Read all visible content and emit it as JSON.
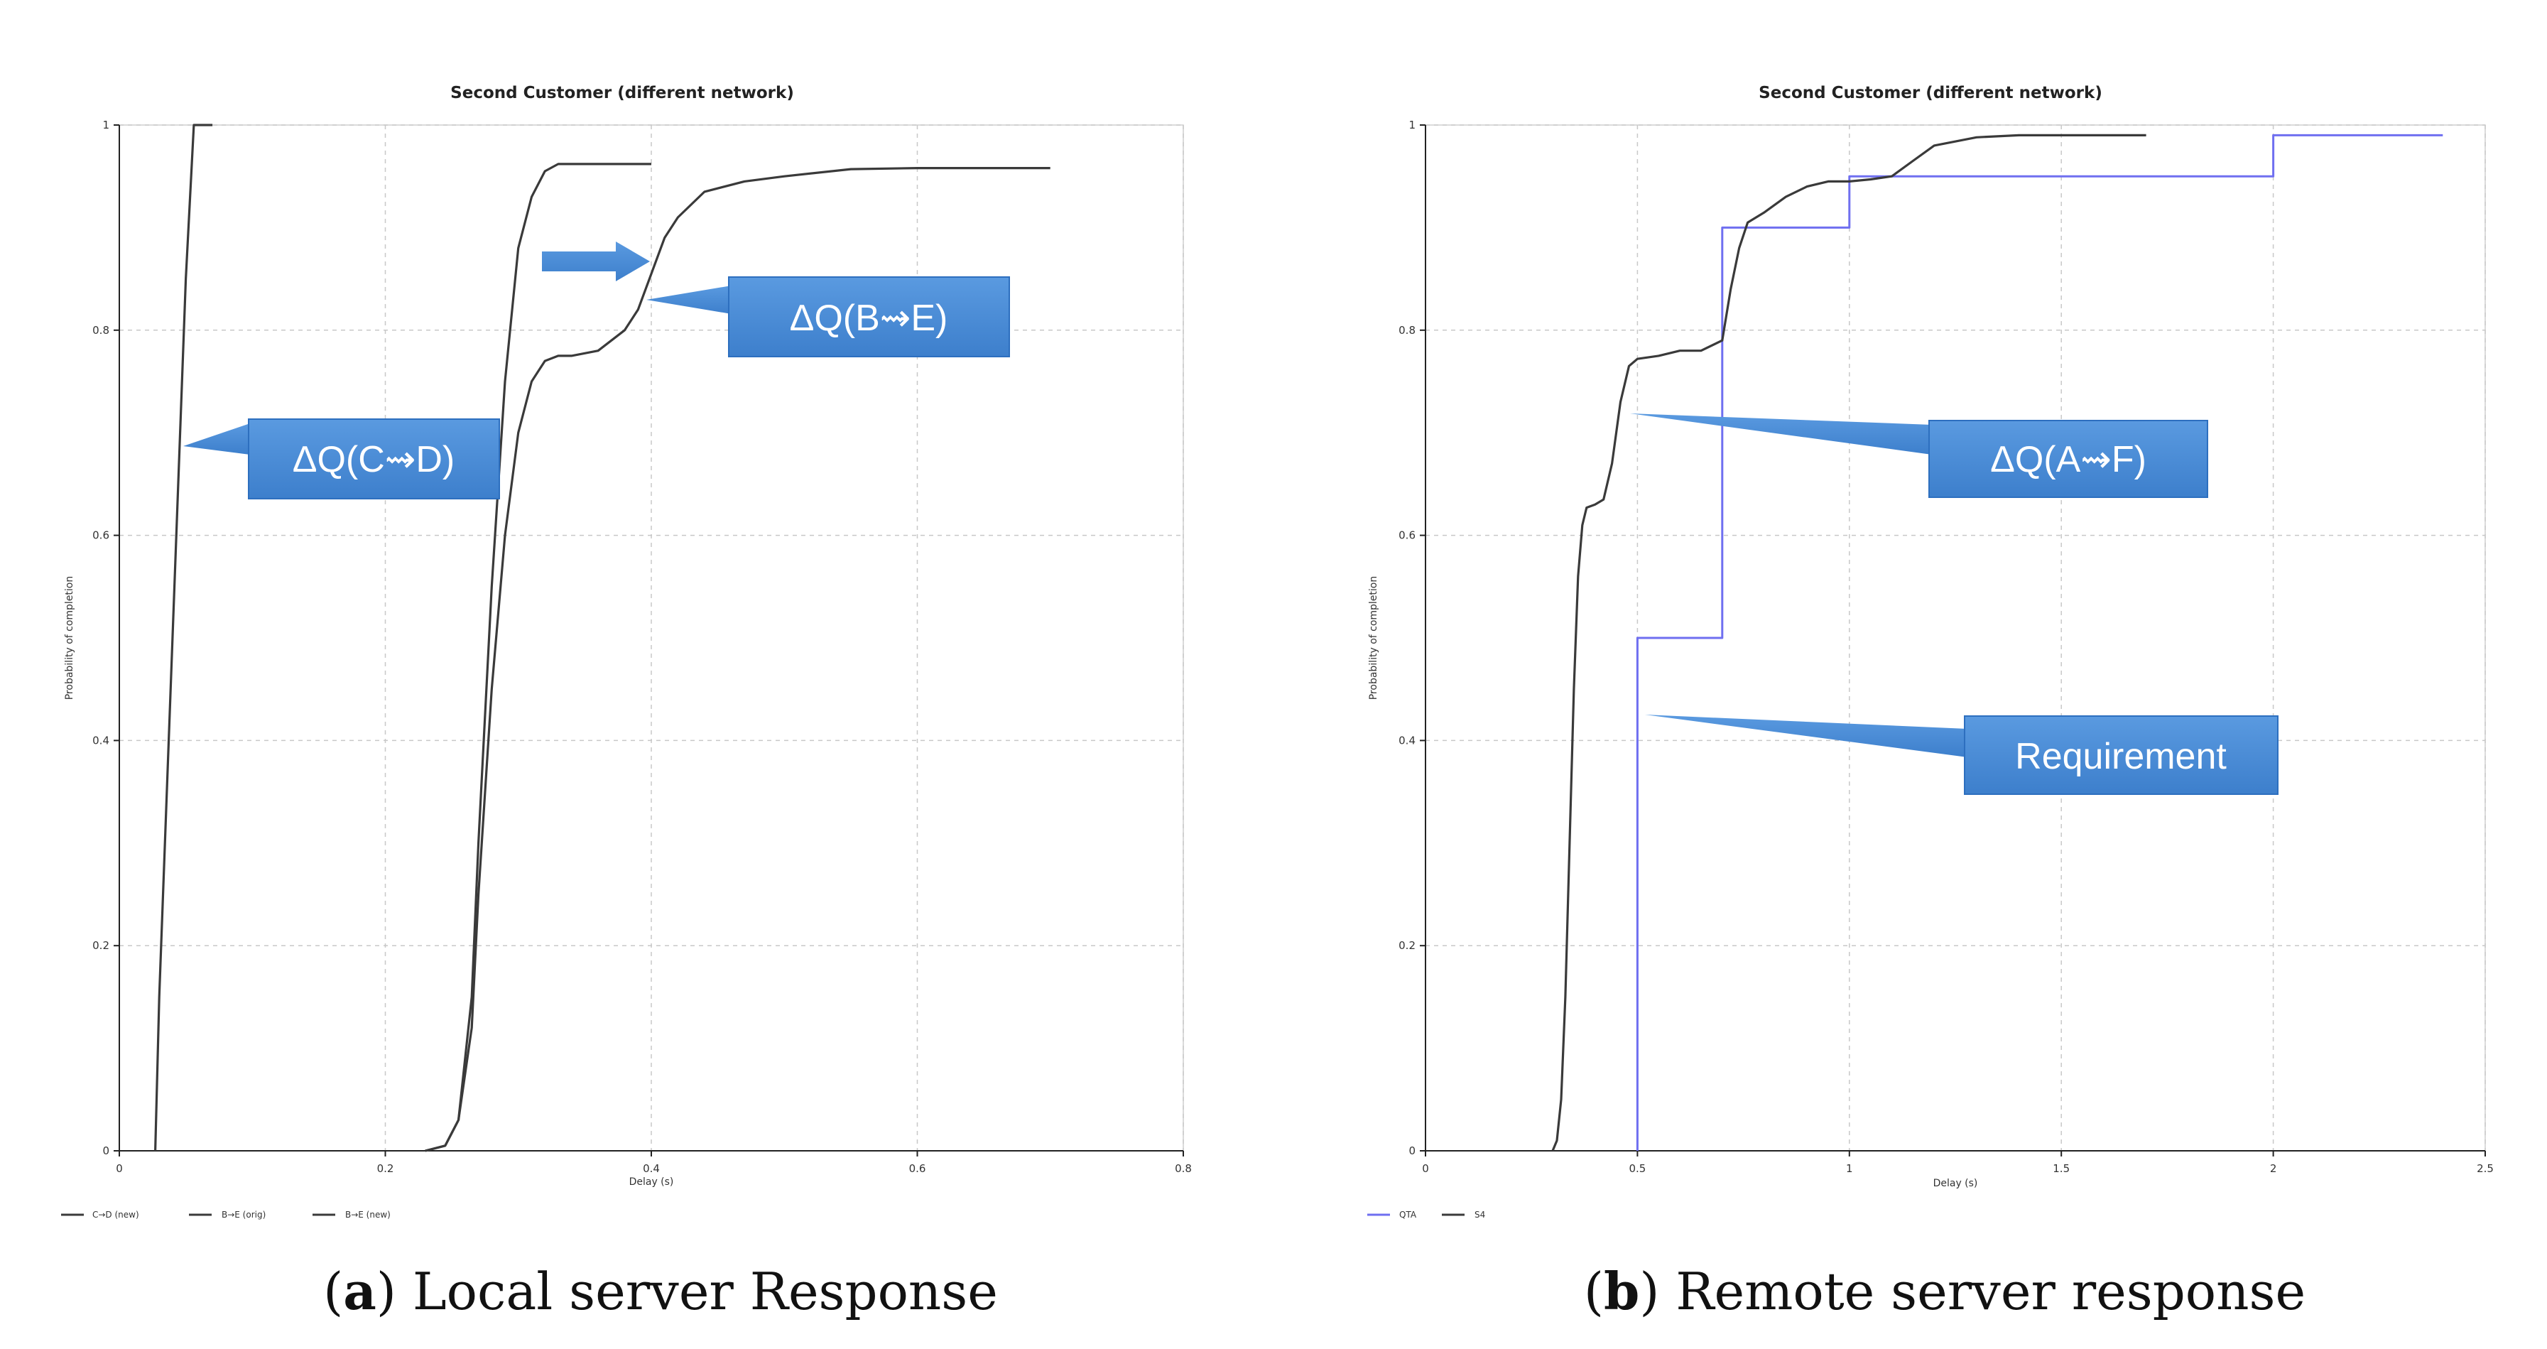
{
  "chart_data": [
    {
      "type": "line",
      "title": "Second Customer (different network)",
      "xlabel": "Delay (s)",
      "ylabel": "Probability of completion",
      "xlim": [
        0,
        0.8
      ],
      "ylim": [
        0,
        1
      ],
      "xticks": [
        "0",
        "0.2",
        "0.4",
        "0.6",
        "0.8"
      ],
      "yticks": [
        "0",
        "0.2",
        "0.4",
        "0.6",
        "0.8",
        "1"
      ],
      "grid": true,
      "legend_position": "bottom-left",
      "series": [
        {
          "name": "C→D (new)",
          "color": "#3a3a3a",
          "x": [
            0.027,
            0.03,
            0.04,
            0.05,
            0.056,
            0.06,
            0.07
          ],
          "y": [
            0,
            0.15,
            0.5,
            0.85,
            1.0,
            1.0,
            1.0
          ]
        },
        {
          "name": "B→E (orig)",
          "color": "#3a3a3a",
          "x": [
            0.23,
            0.245,
            0.255,
            0.265,
            0.27,
            0.28,
            0.29,
            0.3,
            0.31,
            0.32,
            0.33,
            0.35,
            0.4
          ],
          "y": [
            0,
            0.005,
            0.03,
            0.15,
            0.3,
            0.55,
            0.75,
            0.88,
            0.93,
            0.955,
            0.962,
            0.962,
            0.962
          ]
        },
        {
          "name": "B→E (new)",
          "color": "#3a3a3a",
          "x": [
            0.23,
            0.245,
            0.255,
            0.265,
            0.27,
            0.28,
            0.29,
            0.3,
            0.31,
            0.32,
            0.33,
            0.34,
            0.36,
            0.38,
            0.39,
            0.4,
            0.41,
            0.42,
            0.44,
            0.47,
            0.5,
            0.55,
            0.6,
            0.7
          ],
          "y": [
            0,
            0.005,
            0.03,
            0.12,
            0.25,
            0.45,
            0.6,
            0.7,
            0.75,
            0.77,
            0.775,
            0.775,
            0.78,
            0.8,
            0.82,
            0.855,
            0.89,
            0.91,
            0.935,
            0.945,
            0.95,
            0.957,
            0.958,
            0.958
          ]
        }
      ],
      "annotations": [
        {
          "text": "ΔQ(C⇝D)",
          "x": 0.05,
          "y": 0.69
        },
        {
          "text": "ΔQ(B⇝E)",
          "x": 0.395,
          "y": 0.83
        }
      ]
    },
    {
      "type": "line",
      "title": "Second Customer (different network)",
      "xlabel": "Delay (s)",
      "ylabel": "Probability of completion",
      "xlim": [
        0,
        2.5
      ],
      "ylim": [
        0,
        1
      ],
      "xticks": [
        "0",
        "0.5",
        "1",
        "1.5",
        "2",
        "2.5"
      ],
      "yticks": [
        "0",
        "0.2",
        "0.4",
        "0.6",
        "0.8",
        "1"
      ],
      "grid": true,
      "legend_position": "bottom-left",
      "series": [
        {
          "name": "QTA",
          "color": "#6f6ff0",
          "step": true,
          "x": [
            0.5,
            0.5,
            0.7,
            0.7,
            1.0,
            1.0,
            2.0,
            2.0,
            2.4
          ],
          "y": [
            0,
            0.5,
            0.5,
            0.9,
            0.9,
            0.95,
            0.95,
            0.99,
            0.99
          ]
        },
        {
          "name": "S4",
          "color": "#3a3a3a",
          "x": [
            0.3,
            0.31,
            0.32,
            0.33,
            0.34,
            0.35,
            0.36,
            0.37,
            0.38,
            0.4,
            0.42,
            0.44,
            0.46,
            0.48,
            0.5,
            0.55,
            0.6,
            0.65,
            0.7,
            0.72,
            0.74,
            0.76,
            0.8,
            0.85,
            0.9,
            0.95,
            1.0,
            1.05,
            1.1,
            1.15,
            1.2,
            1.3,
            1.4,
            1.5,
            1.7
          ],
          "y": [
            0,
            0.01,
            0.05,
            0.15,
            0.3,
            0.45,
            0.56,
            0.61,
            0.627,
            0.63,
            0.635,
            0.67,
            0.73,
            0.765,
            0.772,
            0.775,
            0.78,
            0.78,
            0.79,
            0.84,
            0.88,
            0.905,
            0.915,
            0.93,
            0.94,
            0.945,
            0.945,
            0.947,
            0.95,
            0.965,
            0.98,
            0.988,
            0.99,
            0.99,
            0.99
          ]
        }
      ],
      "annotations": [
        {
          "text": "ΔQ(A⇝F)",
          "x": 0.48,
          "y": 0.72
        },
        {
          "text": "Requirement",
          "x": 0.52,
          "y": 0.425
        }
      ]
    }
  ],
  "captions": [
    {
      "letter": "a",
      "rest": ") Local server Response"
    },
    {
      "letter": "b",
      "rest": ") Remote server response"
    }
  ],
  "colors": {
    "callout": "#4a8bd6",
    "callout_dark": "#2d6fbf",
    "qta": "#6f6ff0",
    "s4": "#3a3a3a"
  }
}
